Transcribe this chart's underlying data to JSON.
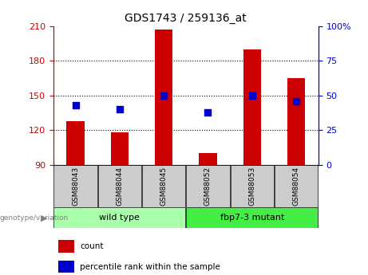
{
  "title": "GDS1743 / 259136_at",
  "samples": [
    "GSM88043",
    "GSM88044",
    "GSM88045",
    "GSM88052",
    "GSM88053",
    "GSM88054"
  ],
  "counts": [
    128,
    118,
    207,
    100,
    190,
    165
  ],
  "percentile_ranks": [
    43,
    40,
    50,
    38,
    50,
    46
  ],
  "ylim_left": [
    90,
    210
  ],
  "ylim_right": [
    0,
    100
  ],
  "yticks_left": [
    90,
    120,
    150,
    180,
    210
  ],
  "yticks_right": [
    0,
    25,
    50,
    75,
    100
  ],
  "ytick_labels_right": [
    "0",
    "25",
    "50",
    "75",
    "100%"
  ],
  "hlines": [
    120,
    150,
    180
  ],
  "bar_color": "#cc0000",
  "dot_color": "#0000cc",
  "groups": [
    {
      "label": "wild type",
      "indices": [
        0,
        1,
        2
      ],
      "color": "#aaffaa"
    },
    {
      "label": "fbp7-3 mutant",
      "indices": [
        3,
        4,
        5
      ],
      "color": "#44ee44"
    }
  ],
  "genotype_label": "genotype/variation",
  "legend_count_label": "count",
  "legend_pct_label": "percentile rank within the sample",
  "axis_left_color": "#cc0000",
  "axis_right_color": "#0000cc",
  "bg_color": "#ffffff",
  "plot_bg_color": "#ffffff",
  "tick_bg_color": "#cccccc",
  "bar_width": 0.4,
  "dot_size": 30
}
